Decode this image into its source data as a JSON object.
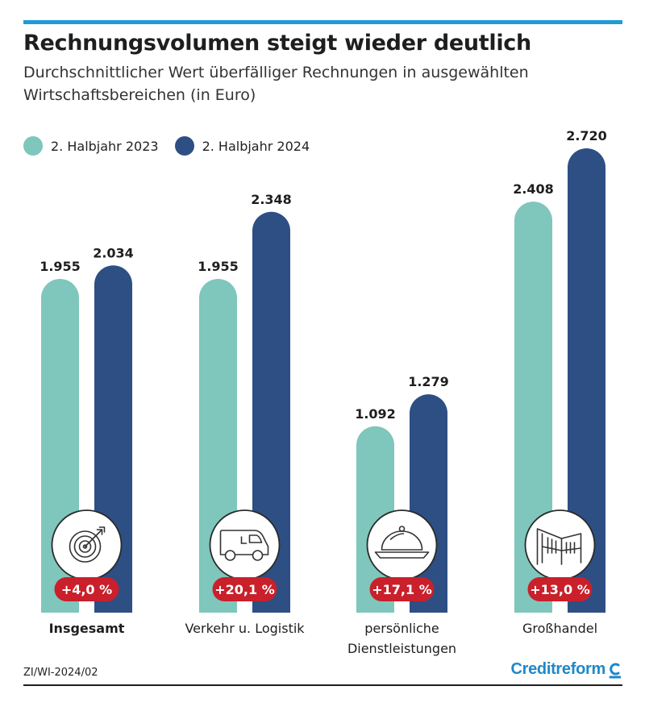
{
  "chart_data": {
    "type": "bar",
    "title": "Rechnungsvolumen steigt wieder deutlich",
    "subtitle": "Durchschnittlicher Wert überfälliger Rechnungen in ausgewählten Wirtschaftsbereichen (in Euro)",
    "categories": [
      "Insgesamt",
      "Verkehr u. Logistik",
      "persönliche Dienstleistungen",
      "Großhandel"
    ],
    "category_lines": [
      [
        "Insgesamt"
      ],
      [
        "Verkehr u. Logistik"
      ],
      [
        "persönliche",
        "Dienstleistungen"
      ],
      [
        "Großhandel"
      ]
    ],
    "category_bold": [
      true,
      false,
      false,
      false
    ],
    "category_icons": [
      "target-icon",
      "van-icon",
      "cloche-icon",
      "building-icon"
    ],
    "series": [
      {
        "name": "2. Halbjahr 2023",
        "color": "#7fc6bc",
        "values": [
          1955,
          1955,
          1092,
          2408
        ],
        "labels": [
          "1.955",
          "1.955",
          "1.092",
          "2.408"
        ]
      },
      {
        "name": "2. Halbjahr 2024",
        "color": "#2d4f83",
        "values": [
          2034,
          2348,
          1279,
          2720
        ],
        "labels": [
          "2.034",
          "2.348",
          "1.279",
          "2.720"
        ]
      }
    ],
    "changes": [
      "+4,0 %",
      "+20,1 %",
      "+17,1 %",
      "+13,0 %"
    ],
    "change_color": "#c9202b",
    "legend_position": "top-left",
    "ylim": [
      0,
      2720
    ],
    "grid": false,
    "xlabel": "",
    "ylabel": ""
  },
  "footer": {
    "source": "ZI/WI-2024/02",
    "brand": "Creditreform",
    "brand_color": "#1e88c8"
  },
  "accent_color": "#1f9ad6"
}
